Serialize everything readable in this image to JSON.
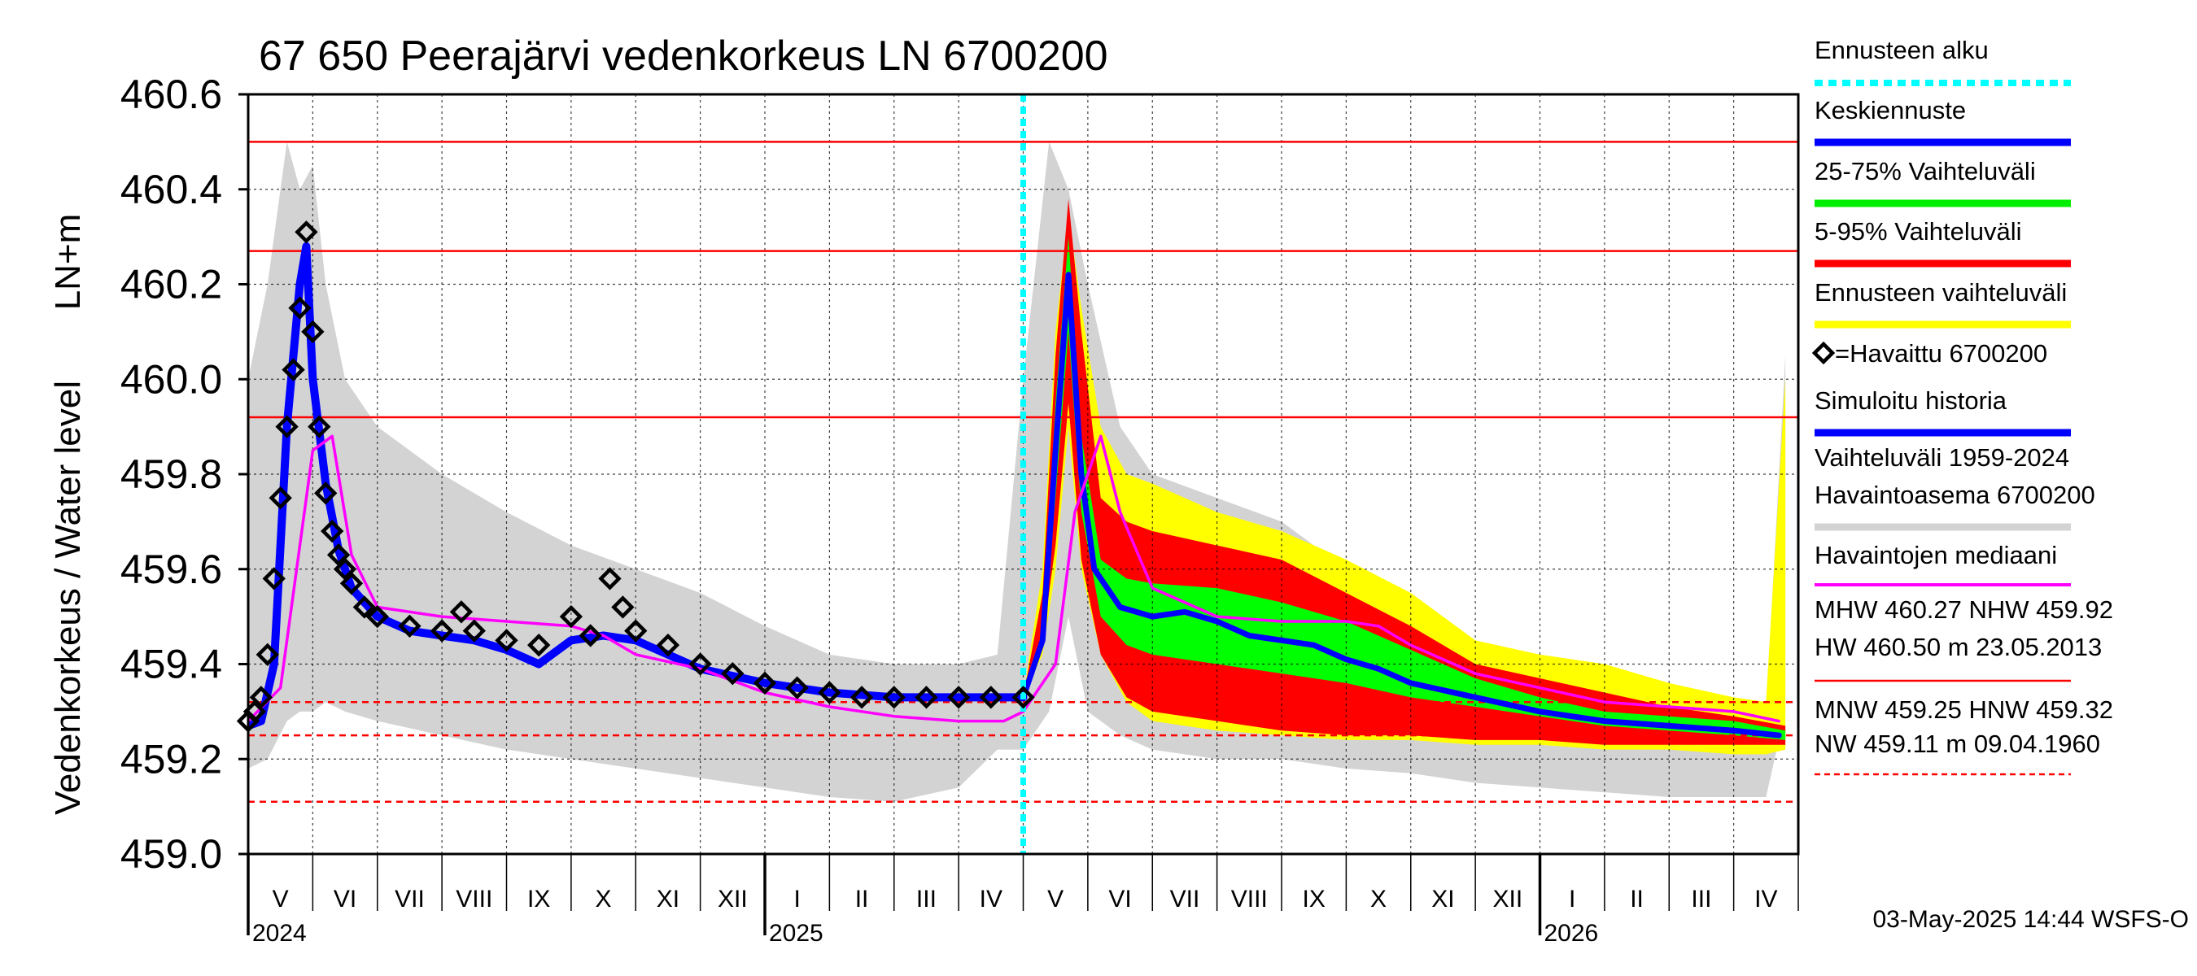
{
  "chart_data": {
    "type": "line",
    "title": "67 650 Peerajärvi vedenkorkeus LN 6700200",
    "ylabel_top": "LN+m",
    "ylabel": "Vedenkorkeus / Water level",
    "ylim": [
      459.0,
      460.6
    ],
    "yticks": [
      "459.0",
      "459.2",
      "459.4",
      "459.6",
      "459.8",
      "460.0",
      "460.2",
      "460.4",
      "460.6"
    ],
    "ytick_values": [
      459.0,
      459.2,
      459.4,
      459.6,
      459.8,
      460.0,
      460.2,
      460.4,
      460.6
    ],
    "month_labels": [
      "V",
      "VI",
      "VII",
      "VIII",
      "IX",
      "X",
      "XI",
      "XII",
      "I",
      "II",
      "III",
      "IV",
      "V",
      "VI",
      "VII",
      "VIII",
      "IX",
      "X",
      "XI",
      "XII",
      "I",
      "II",
      "III",
      "IV"
    ],
    "year_labels": [
      "2024",
      "2025",
      "2026"
    ],
    "forecast_start_index": 12,
    "reference_lines": [
      {
        "name": "HW",
        "value": 460.5,
        "style": "solid"
      },
      {
        "name": "MHW",
        "value": 460.27,
        "style": "solid"
      },
      {
        "name": "NHW",
        "value": 459.92,
        "style": "solid"
      },
      {
        "name": "HNW",
        "value": 459.32,
        "style": "dashed"
      },
      {
        "name": "MNW",
        "value": 459.25,
        "style": "dashed"
      },
      {
        "name": "NW",
        "value": 459.11,
        "style": "dashed"
      }
    ],
    "series": [
      {
        "name": "Havaittu 6700200",
        "kind": "observed",
        "x": [
          0.0,
          0.1,
          0.2,
          0.3,
          0.4,
          0.5,
          0.6,
          0.7,
          0.8,
          0.9,
          1.0,
          1.1,
          1.2,
          1.3,
          1.4,
          1.5,
          1.6,
          1.8,
          2.0,
          2.5,
          3.0,
          3.3,
          3.5,
          4.0,
          4.5,
          5.0,
          5.3,
          5.6,
          5.8,
          6.0,
          6.5,
          7.0,
          7.5,
          8.0,
          8.5,
          9.0,
          9.5,
          10.0,
          10.5,
          11.0,
          11.5,
          12.0
        ],
        "y": [
          459.28,
          459.3,
          459.33,
          459.42,
          459.58,
          459.75,
          459.9,
          460.02,
          460.15,
          460.31,
          460.1,
          459.9,
          459.76,
          459.68,
          459.63,
          459.6,
          459.57,
          459.52,
          459.5,
          459.48,
          459.47,
          459.51,
          459.47,
          459.45,
          459.44,
          459.5,
          459.46,
          459.58,
          459.52,
          459.47,
          459.44,
          459.4,
          459.38,
          459.36,
          459.35,
          459.34,
          459.33,
          459.33,
          459.33,
          459.33,
          459.33,
          459.33
        ]
      },
      {
        "name": "Simuloitu historia",
        "kind": "simulated",
        "x": [
          0.0,
          0.2,
          0.4,
          0.6,
          0.8,
          0.9,
          1.0,
          1.2,
          1.4,
          1.6,
          2.0,
          2.5,
          3.0,
          3.5,
          4.0,
          4.5,
          5.0,
          5.5,
          6.0,
          6.5,
          7.0,
          8.0,
          9.0,
          10.0,
          11.0,
          12.0
        ],
        "y": [
          459.27,
          459.28,
          459.4,
          459.9,
          460.2,
          460.28,
          460.0,
          459.78,
          459.64,
          459.56,
          459.5,
          459.47,
          459.46,
          459.45,
          459.43,
          459.4,
          459.45,
          459.46,
          459.45,
          459.42,
          459.39,
          459.36,
          459.34,
          459.33,
          459.33,
          459.33
        ]
      },
      {
        "name": "Keskiennuste",
        "kind": "forecast_median",
        "x": [
          12.0,
          12.3,
          12.5,
          12.7,
          12.9,
          13.1,
          13.5,
          14.0,
          14.5,
          15.0,
          15.5,
          16.0,
          16.5,
          17.0,
          17.5,
          18.0,
          19.0,
          20.0,
          21.0,
          22.0,
          23.0,
          23.7
        ],
        "y": [
          459.33,
          459.45,
          459.85,
          460.22,
          459.8,
          459.6,
          459.52,
          459.5,
          459.51,
          459.49,
          459.46,
          459.45,
          459.44,
          459.41,
          459.39,
          459.36,
          459.33,
          459.3,
          459.28,
          459.27,
          459.26,
          459.25
        ]
      },
      {
        "name": "Havaintojen mediaani",
        "kind": "median",
        "x": [
          0.0,
          0.5,
          1.0,
          1.3,
          1.6,
          2.0,
          3.0,
          4.0,
          5.0,
          5.5,
          6.0,
          7.0,
          8.0,
          9.0,
          10.0,
          11.0,
          11.7,
          12.0,
          12.5,
          12.8,
          13.2,
          13.5,
          14.0,
          15.0,
          16.0,
          17.0,
          17.5,
          18.0,
          19.0,
          20.0,
          21.0,
          22.0,
          23.0,
          23.7
        ],
        "y": [
          459.28,
          459.35,
          459.85,
          459.88,
          459.63,
          459.52,
          459.5,
          459.49,
          459.48,
          459.46,
          459.42,
          459.39,
          459.34,
          459.31,
          459.29,
          459.28,
          459.28,
          459.3,
          459.4,
          459.72,
          459.88,
          459.72,
          459.56,
          459.5,
          459.49,
          459.49,
          459.48,
          459.44,
          459.38,
          459.35,
          459.32,
          459.31,
          459.3,
          459.28
        ]
      }
    ],
    "bands": [
      {
        "name": "Vaihteluväli 1959-2024 Havaintoasema 6700200",
        "color": "#d3d3d3",
        "x": [
          0.0,
          0.3,
          0.6,
          0.8,
          1.0,
          1.2,
          1.5,
          2.0,
          3.0,
          4.0,
          5.0,
          6.0,
          7.0,
          8.0,
          9.0,
          10.0,
          11.0,
          11.6,
          12.0,
          12.4,
          12.7,
          13.0,
          13.5,
          14.0,
          15.0,
          16.0,
          17.0,
          18.0,
          19.0,
          20.0,
          21.0,
          22.0,
          23.0,
          23.5,
          23.8
        ],
        "low": [
          459.18,
          459.2,
          459.28,
          459.3,
          459.3,
          459.32,
          459.3,
          459.28,
          459.25,
          459.22,
          459.2,
          459.18,
          459.16,
          459.14,
          459.12,
          459.11,
          459.14,
          459.22,
          459.22,
          459.3,
          459.5,
          459.3,
          459.25,
          459.22,
          459.2,
          459.2,
          459.18,
          459.17,
          459.15,
          459.14,
          459.13,
          459.12,
          459.12,
          459.12,
          459.3
        ],
        "high": [
          460.0,
          460.2,
          460.5,
          460.4,
          460.45,
          460.2,
          460.0,
          459.9,
          459.8,
          459.72,
          459.65,
          459.6,
          459.55,
          459.48,
          459.42,
          459.4,
          459.4,
          459.42,
          460.0,
          460.5,
          460.4,
          460.2,
          459.9,
          459.8,
          459.75,
          459.7,
          459.6,
          459.5,
          459.4,
          459.35,
          459.32,
          459.3,
          459.28,
          459.3,
          460.05
        ]
      },
      {
        "name": "Ennusteen vaihteluväli",
        "color": "#ffff00",
        "x": [
          12.0,
          12.3,
          12.5,
          12.7,
          12.9,
          13.2,
          13.6,
          14.0,
          15.0,
          16.0,
          17.0,
          18.0,
          19.0,
          20.0,
          21.0,
          22.0,
          23.0,
          23.5,
          23.8
        ],
        "low": [
          459.33,
          459.42,
          459.6,
          459.9,
          459.6,
          459.42,
          459.32,
          459.28,
          459.26,
          459.25,
          459.24,
          459.24,
          459.23,
          459.23,
          459.22,
          459.22,
          459.21,
          459.21,
          459.22
        ],
        "high": [
          459.33,
          459.6,
          460.1,
          460.35,
          460.15,
          459.9,
          459.8,
          459.78,
          459.72,
          459.68,
          459.62,
          459.55,
          459.45,
          459.42,
          459.4,
          459.36,
          459.33,
          459.32,
          460.0
        ]
      },
      {
        "name": "5-95% Vaihteluväli",
        "color": "#ff0000",
        "x": [
          12.0,
          12.3,
          12.5,
          12.7,
          12.9,
          13.2,
          13.6,
          14.0,
          15.0,
          16.0,
          17.0,
          18.0,
          19.0,
          20.0,
          21.0,
          22.0,
          23.0,
          23.8
        ],
        "low": [
          459.33,
          459.45,
          459.65,
          459.95,
          459.62,
          459.42,
          459.33,
          459.3,
          459.28,
          459.26,
          459.25,
          459.25,
          459.24,
          459.24,
          459.23,
          459.23,
          459.23,
          459.23
        ],
        "high": [
          459.33,
          459.55,
          460.05,
          460.38,
          460.1,
          459.75,
          459.7,
          459.68,
          459.65,
          459.62,
          459.55,
          459.48,
          459.4,
          459.37,
          459.34,
          459.31,
          459.29,
          459.27
        ]
      },
      {
        "name": "25-75% Vaihteluväli",
        "color": "#00ff00",
        "x": [
          12.0,
          12.3,
          12.5,
          12.7,
          12.9,
          13.2,
          13.6,
          14.0,
          15.0,
          16.0,
          17.0,
          18.0,
          19.0,
          20.0,
          21.0,
          22.0,
          23.0,
          23.8
        ],
        "low": [
          459.33,
          459.45,
          459.75,
          460.1,
          459.72,
          459.5,
          459.44,
          459.42,
          459.4,
          459.38,
          459.36,
          459.33,
          459.31,
          459.29,
          459.27,
          459.26,
          459.25,
          459.24
        ],
        "high": [
          459.33,
          459.47,
          459.95,
          460.3,
          459.88,
          459.62,
          459.58,
          459.57,
          459.56,
          459.53,
          459.49,
          459.43,
          459.37,
          459.33,
          459.3,
          459.29,
          459.28,
          459.26
        ]
      }
    ],
    "legend": [
      {
        "label": "Ennusteen alku",
        "color": "#00ffff",
        "style": "dotted"
      },
      {
        "label": "Keskiennuste",
        "color": "#0000ff",
        "style": "thick"
      },
      {
        "label": "25-75% Vaihteluväli",
        "color": "#00ee00",
        "style": "thick"
      },
      {
        "label": "5-95% Vaihteluväli",
        "color": "#ff0000",
        "style": "thick"
      },
      {
        "label": "Ennusteen vaihteluväli",
        "color": "#ffff00",
        "style": "thick"
      },
      {
        "label": "=Havaittu 6700200",
        "color": "#000000",
        "style": "diamond"
      },
      {
        "label": "Simuloitu historia",
        "color": "#0000ff",
        "style": "thick"
      },
      {
        "label": "Vaihteluväli 1959-2024",
        "label2": " Havaintoasema 6700200",
        "color": "#d3d3d3",
        "style": "thick"
      },
      {
        "label": "Havaintojen mediaani",
        "color": "#ff00ff",
        "style": "thin"
      },
      {
        "label": "MHW 460.27 NHW 459.92",
        "label2": "HW 460.50 m 23.05.2013",
        "color": "#ff0000",
        "style": "solid-thin"
      },
      {
        "label": "MNW 459.25 HNW 459.32",
        "label2": "NW 459.11 m 09.04.1960",
        "color": "#ff0000",
        "style": "dashed-thin"
      }
    ],
    "timestamp": "03-May-2025 14:44 WSFS-O"
  }
}
